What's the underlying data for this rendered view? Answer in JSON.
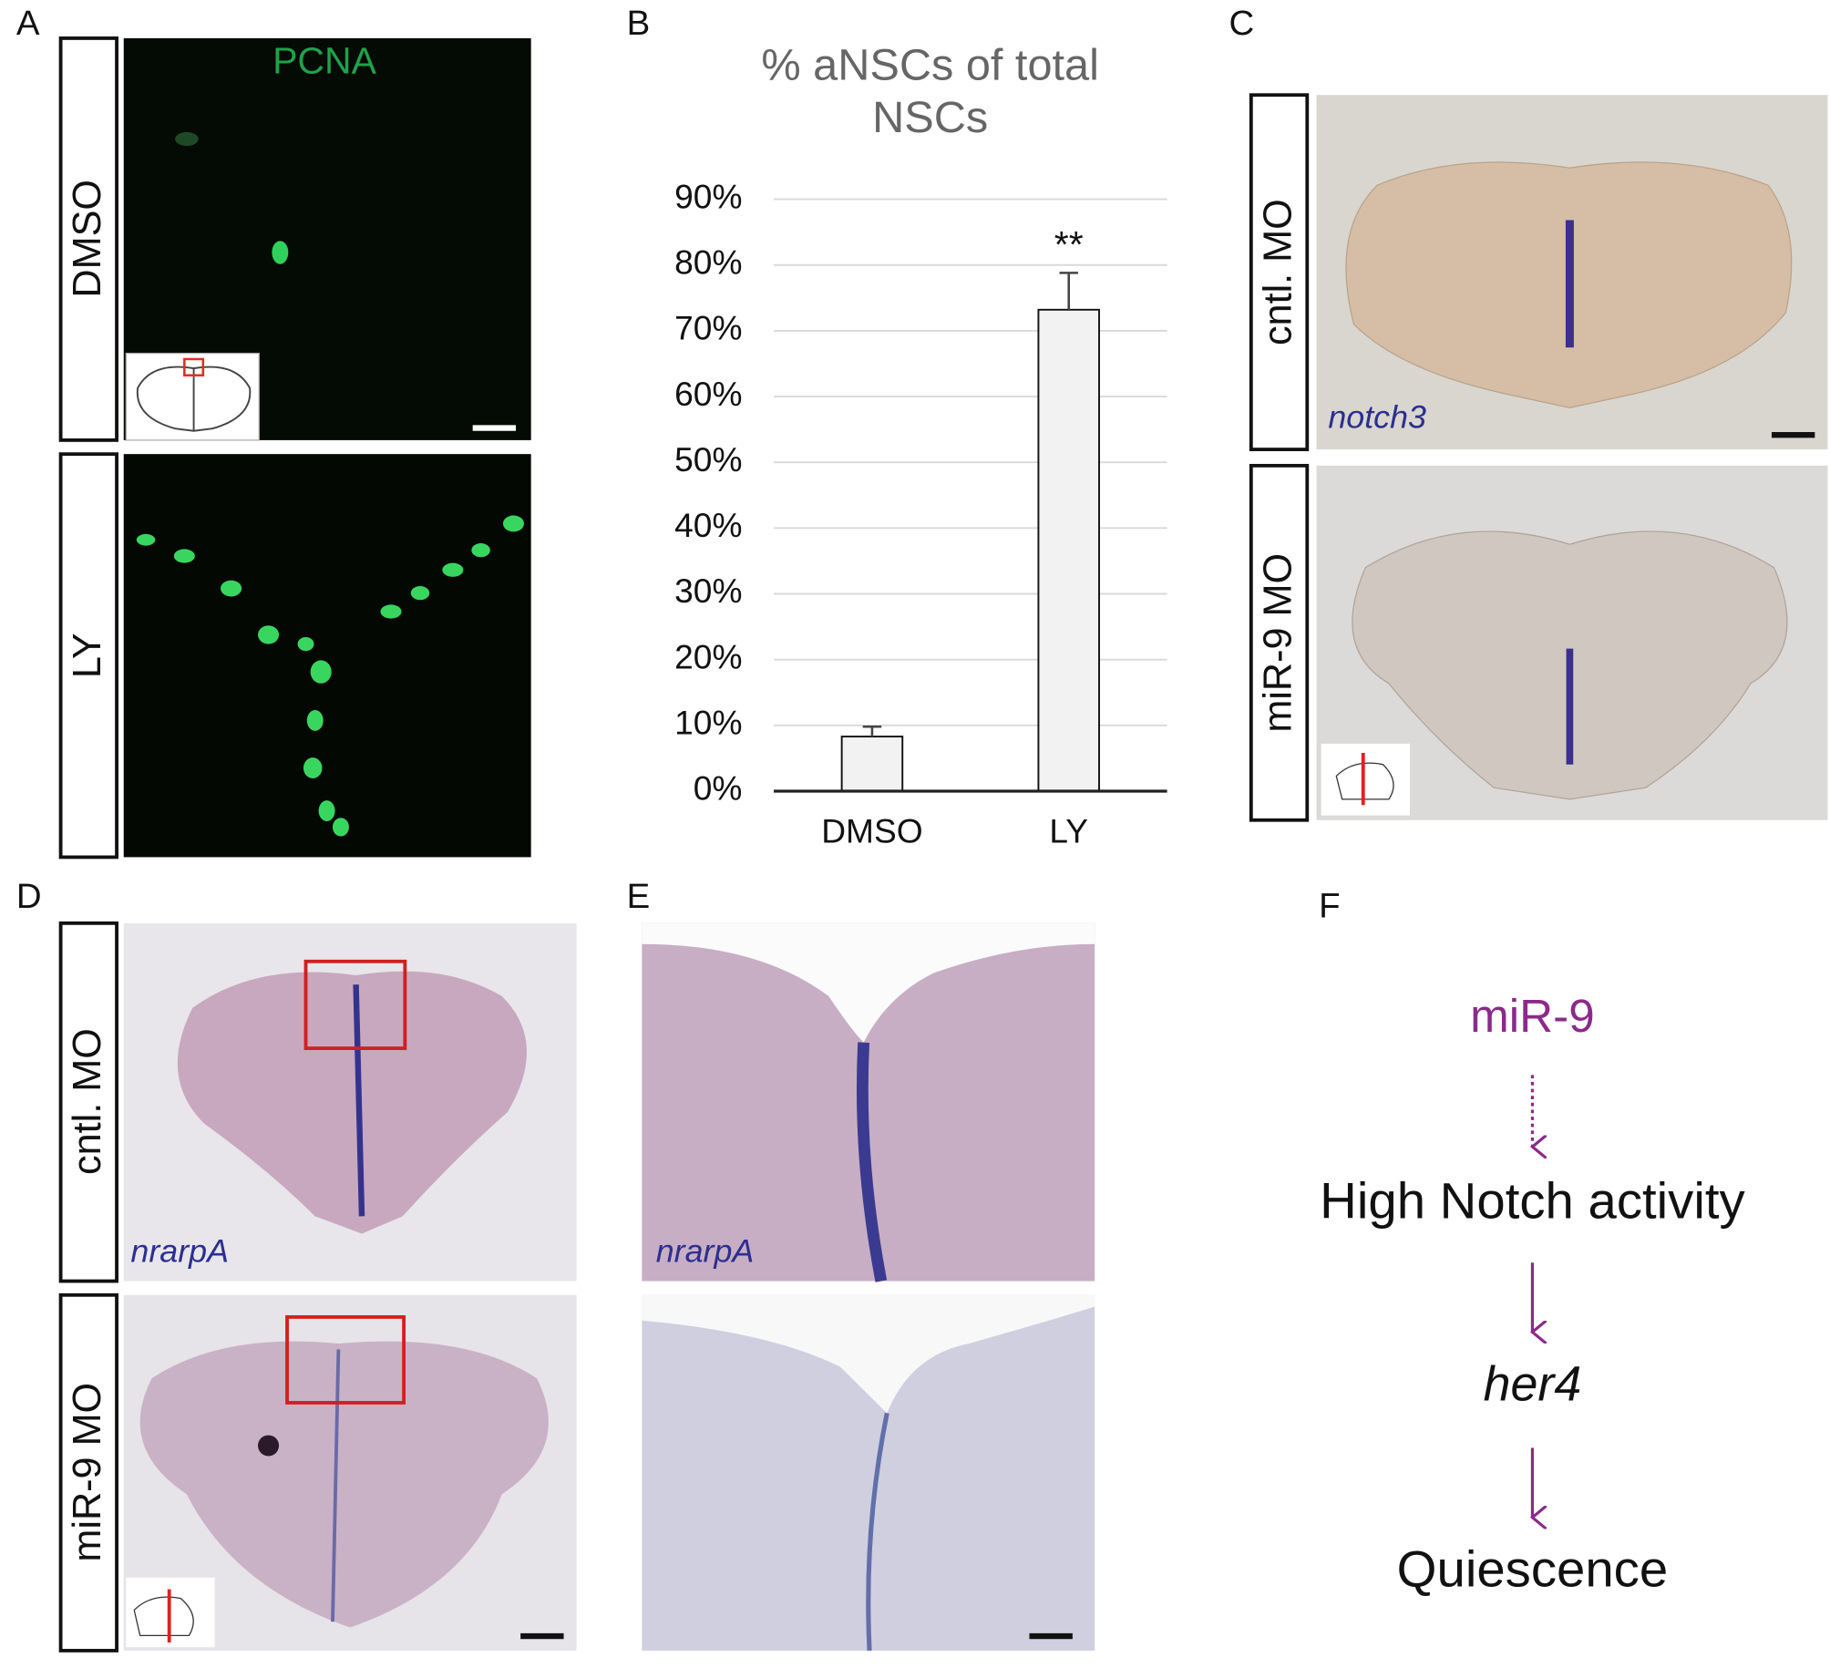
{
  "panel_a": {
    "label": "A",
    "stain": "PCNA",
    "rows": [
      "DMSO",
      "LY"
    ]
  },
  "chart_data": {
    "type": "bar",
    "label": "B",
    "title": "% aNSCs of total NSCs",
    "categories": [
      "DMSO",
      "LY"
    ],
    "values": [
      8.3,
      73.2
    ],
    "errors": [
      1.5,
      5.6
    ],
    "color": "#f2f2f2",
    "annotation": "**",
    "ylim": [
      0,
      90
    ],
    "yticks": [
      {
        "value": 0,
        "label": "0%"
      },
      {
        "value": 10,
        "label": "10%"
      },
      {
        "value": 20,
        "label": "20%"
      },
      {
        "value": 30,
        "label": "30%"
      },
      {
        "value": 40,
        "label": "40%"
      },
      {
        "value": 50,
        "label": "50%"
      },
      {
        "value": 60,
        "label": "60%"
      },
      {
        "value": 70,
        "label": "70%"
      },
      {
        "value": 80,
        "label": "80%"
      },
      {
        "value": 90,
        "label": "90%"
      }
    ],
    "grid": true
  },
  "panel_c": {
    "label": "C",
    "rows": [
      "cntl. MO",
      "miR-9 MO"
    ],
    "gene": "notch3"
  },
  "panel_d": {
    "label": "D",
    "rows": [
      "cntl. MO",
      "miR-9 MO"
    ],
    "gene": "nrarpA"
  },
  "panel_e": {
    "label": "E",
    "gene": "nrarpA"
  },
  "panel_f": {
    "label": "F",
    "steps": [
      "miR-9",
      "High Notch activity",
      "her4",
      "Quiescence"
    ]
  }
}
